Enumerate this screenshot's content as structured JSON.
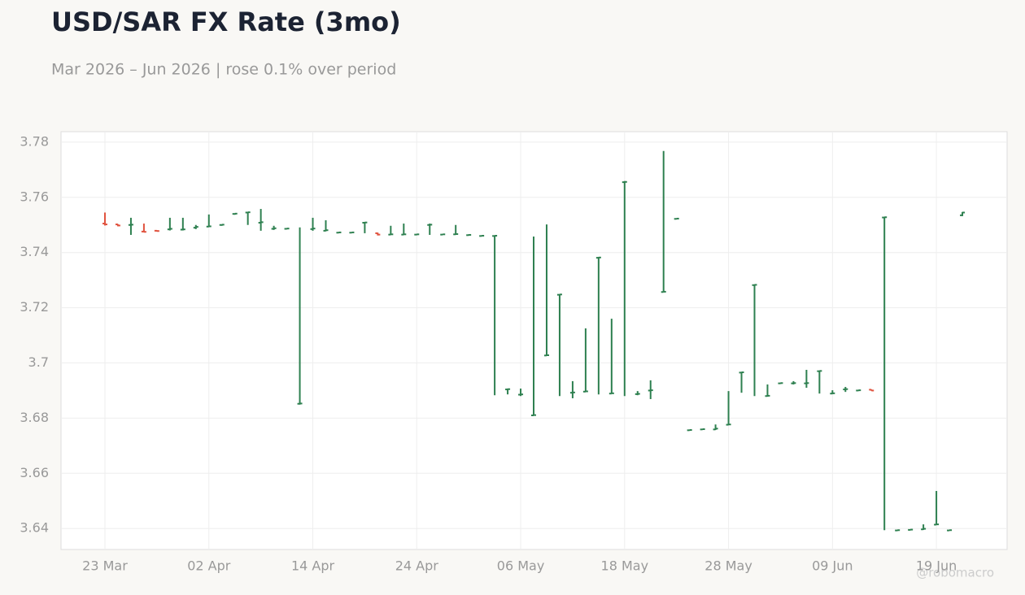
{
  "chart_data": {
    "type": "ohlc",
    "title": "USD/SAR FX Rate (3mo)",
    "subtitle": "Mar 2026 – Jun 2026 | rose 0.1% over period",
    "watermark": "@robomacro",
    "categories": [
      "23 Mar",
      null,
      null,
      null,
      null,
      null,
      null,
      null,
      "02 Apr",
      null,
      null,
      null,
      null,
      null,
      null,
      null,
      "14 Apr",
      null,
      null,
      null,
      null,
      null,
      null,
      null,
      "24 Apr",
      null,
      null,
      null,
      null,
      null,
      null,
      null,
      "06 May",
      null,
      null,
      null,
      null,
      null,
      null,
      null,
      "18 May",
      null,
      null,
      null,
      null,
      null,
      null,
      null,
      "28 May",
      null,
      null,
      null,
      null,
      null,
      null,
      null,
      "09 Jun",
      null,
      null,
      null,
      null,
      null,
      null,
      null,
      "19 Jun",
      null,
      null
    ],
    "open": [
      3.7505,
      3.7502,
      3.75,
      3.7476,
      3.7479,
      3.7484,
      3.7483,
      3.749,
      3.7494,
      3.75,
      3.754,
      3.7545,
      3.7508,
      3.7486,
      3.7486,
      3.6852,
      3.7485,
      3.7479,
      3.7472,
      3.7472,
      3.7508,
      3.747,
      3.7465,
      3.7465,
      3.7465,
      3.75,
      3.7465,
      3.7466,
      3.7463,
      3.746,
      3.746,
      3.6904,
      3.6885,
      3.681,
      3.7027,
      3.7247,
      3.6892,
      3.6896,
      3.7381,
      3.6889,
      3.7655,
      3.6887,
      3.69,
      3.7257,
      3.7522,
      3.6756,
      3.6759,
      3.6759,
      3.6776,
      3.6965,
      3.7282,
      3.688,
      3.6926,
      3.6926,
      3.6926,
      3.697,
      3.6889,
      3.6904,
      3.69,
      3.6903,
      3.7527,
      3.6393,
      3.6395,
      3.6397,
      3.6414,
      3.6393,
      3.7535
    ],
    "high": [
      3.7545,
      3.7503,
      3.7526,
      3.7505,
      3.7481,
      3.7526,
      3.7526,
      3.75,
      3.7538,
      3.7502,
      3.7542,
      3.7547,
      3.7558,
      3.7497,
      3.7488,
      3.7491,
      3.7526,
      3.7517,
      3.7474,
      3.7474,
      3.7511,
      3.7472,
      3.7497,
      3.7505,
      3.7467,
      3.7505,
      3.7467,
      3.75,
      3.7466,
      3.7462,
      3.7461,
      3.6907,
      3.6907,
      3.7458,
      3.7502,
      3.7249,
      3.6934,
      3.7125,
      3.7384,
      3.716,
      3.7659,
      3.6898,
      3.6937,
      3.7768,
      3.7524,
      3.6758,
      3.6761,
      3.6777,
      3.6898,
      3.6966,
      3.7284,
      3.6922,
      3.6928,
      3.6934,
      3.6975,
      3.6972,
      3.6901,
      3.6913,
      3.6902,
      3.6904,
      3.7529,
      3.6395,
      3.6397,
      3.6415,
      3.6536,
      3.6395,
      3.7547
    ],
    "low": [
      3.7498,
      3.7495,
      3.7464,
      3.7473,
      3.7476,
      3.748,
      3.748,
      3.7485,
      3.7494,
      3.7497,
      3.7537,
      3.75,
      3.7479,
      3.7482,
      3.7484,
      3.6849,
      3.7479,
      3.7477,
      3.747,
      3.7471,
      3.747,
      3.7462,
      3.7464,
      3.7464,
      3.7463,
      3.7464,
      3.7464,
      3.7464,
      3.7461,
      3.7458,
      3.6883,
      3.6886,
      3.688,
      3.681,
      3.7028,
      3.688,
      3.6872,
      3.6895,
      3.6886,
      3.6889,
      3.688,
      3.6883,
      3.6869,
      3.7258,
      3.752,
      3.6754,
      3.6757,
      3.6757,
      3.6776,
      3.6892,
      3.688,
      3.6878,
      3.6924,
      3.6922,
      3.691,
      3.6889,
      3.6887,
      3.6895,
      3.6898,
      3.6899,
      3.6394,
      3.6391,
      3.6393,
      3.6395,
      3.6414,
      3.6392,
      3.7532
    ],
    "close": [
      3.7502,
      3.7498,
      3.7501,
      3.7475,
      3.7478,
      3.7486,
      3.7484,
      3.7493,
      3.7495,
      3.7501,
      3.7541,
      3.7546,
      3.751,
      3.7488,
      3.7487,
      3.6853,
      3.7487,
      3.7481,
      3.7473,
      3.7473,
      3.7509,
      3.7465,
      3.7466,
      3.7466,
      3.7466,
      3.7501,
      3.7466,
      3.7467,
      3.7464,
      3.7461,
      3.7461,
      3.6905,
      3.6886,
      3.6811,
      3.7028,
      3.7248,
      3.6893,
      3.6897,
      3.7382,
      3.689,
      3.7656,
      3.6888,
      3.6901,
      3.7258,
      3.7523,
      3.6757,
      3.676,
      3.6762,
      3.6777,
      3.6966,
      3.7283,
      3.6881,
      3.6927,
      3.6927,
      3.6927,
      3.6971,
      3.689,
      3.6905,
      3.6901,
      3.69,
      3.7528,
      3.6394,
      3.6396,
      3.6399,
      3.6415,
      3.6394,
      3.7545
    ],
    "up_color": "#2e8050",
    "down_color": "#e0533f",
    "ylim": [
      3.6324,
      3.7838
    ],
    "yticks": [
      3.64,
      3.66,
      3.68,
      3.7,
      3.72,
      3.74,
      3.76,
      3.78
    ],
    "grid": true
  }
}
